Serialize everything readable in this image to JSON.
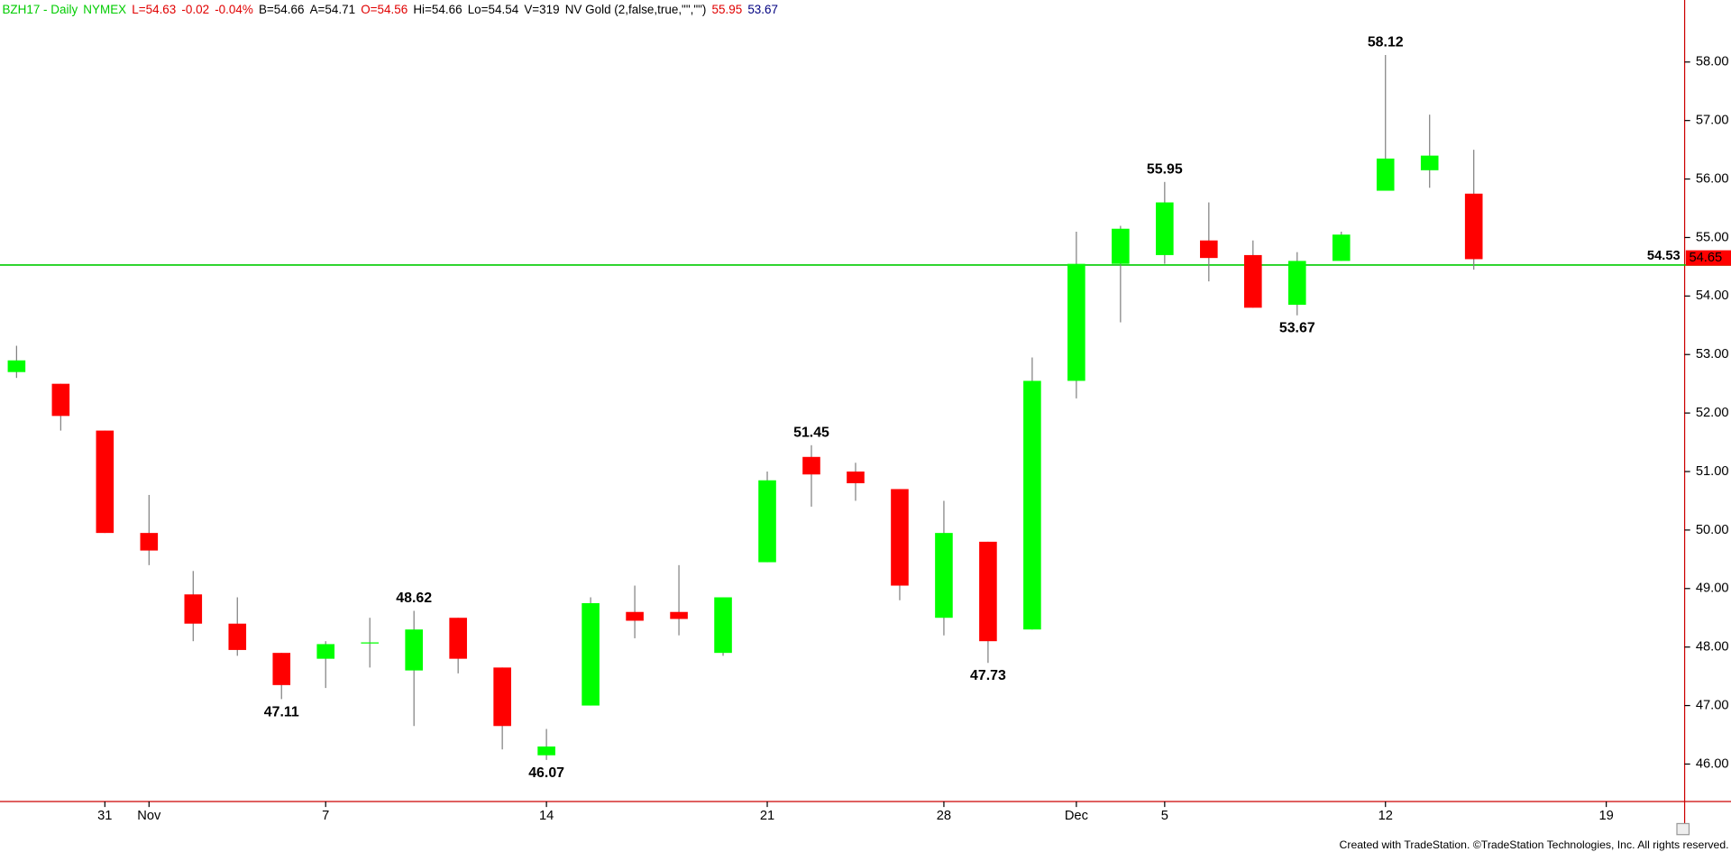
{
  "chart_data": {
    "type": "candlestick",
    "header": [
      {
        "text": "BZH17 - Daily",
        "color": "#00cc00"
      },
      {
        "text": "NYMEX",
        "color": "#00cc00"
      },
      {
        "text": "L=54.63",
        "color": "#e00000"
      },
      {
        "text": "-0.02",
        "color": "#e00000"
      },
      {
        "text": "-0.04%",
        "color": "#e00000"
      },
      {
        "text": "B=54.66",
        "color": "#000000"
      },
      {
        "text": "A=54.71",
        "color": "#000000"
      },
      {
        "text": "O=54.56",
        "color": "#e00000"
      },
      {
        "text": "Hi=54.66",
        "color": "#000000"
      },
      {
        "text": "Lo=54.54",
        "color": "#000000"
      },
      {
        "text": "V=319",
        "color": "#000000"
      },
      {
        "text": "NV Gold (2,false,true,\"\",\"\")",
        "color": "#000000"
      },
      {
        "text": "55.95",
        "color": "#e00000"
      },
      {
        "text": "53.67",
        "color": "#000080"
      }
    ],
    "footer": "Created with TradeStation. ©TradeStation Technologies, Inc. All rights reserved.",
    "categories": [
      null,
      null,
      "31",
      "Nov",
      null,
      null,
      null,
      "7",
      null,
      null,
      null,
      null,
      "14",
      null,
      null,
      null,
      null,
      "21",
      null,
      null,
      null,
      "28",
      null,
      null,
      "Dec",
      null,
      "5",
      null,
      null,
      null,
      null,
      "12",
      null,
      null,
      null,
      null,
      "19"
    ],
    "series": [
      {
        "up_color": "#00ff00",
        "down_color": "#ff0000",
        "open": [
          52.7,
          52.5,
          51.7,
          49.95,
          48.9,
          48.4,
          47.9,
          47.8,
          48.07,
          47.6,
          48.5,
          47.65,
          46.15,
          47.0,
          48.6,
          48.6,
          47.9,
          49.45,
          51.25,
          51.0,
          50.7,
          48.5,
          49.8,
          48.3,
          52.55,
          54.55,
          54.7,
          54.95,
          54.7,
          53.85,
          54.6,
          55.8,
          56.15,
          55.75,
          null,
          null,
          null
        ],
        "high": [
          53.15,
          52.5,
          51.7,
          50.6,
          49.3,
          48.85,
          47.9,
          48.1,
          48.5,
          48.62,
          48.5,
          47.65,
          46.6,
          48.85,
          49.05,
          49.4,
          48.85,
          51.0,
          51.45,
          51.15,
          50.7,
          50.5,
          49.8,
          52.95,
          55.1,
          55.2,
          55.95,
          55.6,
          54.95,
          54.75,
          55.1,
          58.12,
          57.1,
          56.5,
          null,
          null,
          null
        ],
        "low": [
          52.6,
          51.7,
          49.95,
          49.4,
          48.1,
          47.85,
          47.11,
          47.3,
          47.65,
          46.65,
          47.55,
          46.25,
          46.07,
          47.0,
          48.15,
          48.2,
          47.85,
          49.45,
          50.4,
          50.5,
          48.8,
          48.2,
          47.73,
          48.3,
          52.25,
          53.55,
          54.55,
          54.25,
          53.8,
          53.67,
          54.6,
          55.8,
          55.85,
          54.45,
          null,
          null,
          null
        ],
        "close": [
          52.9,
          51.95,
          49.95,
          49.65,
          48.4,
          47.95,
          47.35,
          48.05,
          48.07,
          48.3,
          47.8,
          46.65,
          46.3,
          48.75,
          48.45,
          48.48,
          48.85,
          50.85,
          50.95,
          50.8,
          49.05,
          49.95,
          48.1,
          52.55,
          54.55,
          55.15,
          55.6,
          54.65,
          53.8,
          54.6,
          55.05,
          56.35,
          56.4,
          54.63,
          null,
          null,
          null
        ]
      }
    ],
    "value_labels": {
      "high": [
        null,
        null,
        null,
        null,
        null,
        null,
        null,
        null,
        null,
        "48.62",
        null,
        null,
        null,
        null,
        null,
        null,
        null,
        null,
        "51.45",
        null,
        null,
        null,
        null,
        null,
        null,
        null,
        "55.95",
        null,
        null,
        null,
        null,
        "58.12",
        null,
        null,
        null,
        null,
        null
      ],
      "low": [
        null,
        null,
        null,
        null,
        null,
        null,
        "47.11",
        null,
        null,
        null,
        null,
        null,
        "46.07",
        null,
        null,
        null,
        null,
        null,
        null,
        null,
        null,
        null,
        "47.73",
        null,
        null,
        null,
        null,
        null,
        null,
        "53.67",
        null,
        null,
        null,
        null,
        null,
        null,
        null
      ]
    },
    "reference_line": {
      "value": 54.53,
      "label": "54.53",
      "color": "#00cc00"
    },
    "last_price": {
      "value": 54.65,
      "label": "54.65",
      "color": "#ff0000"
    },
    "ylim": [
      45.36,
      59.06
    ],
    "yticks": [
      {
        "value": 46,
        "label": "46.00"
      },
      {
        "value": 47,
        "label": "47.00"
      },
      {
        "value": 48,
        "label": "48.00"
      },
      {
        "value": 49,
        "label": "49.00"
      },
      {
        "value": 50,
        "label": "50.00"
      },
      {
        "value": 51,
        "label": "51.00"
      },
      {
        "value": 52,
        "label": "52.00"
      },
      {
        "value": 53,
        "label": "53.00"
      },
      {
        "value": 54,
        "label": "54.00"
      },
      {
        "value": 55,
        "label": "55.00"
      },
      {
        "value": 56,
        "label": "56.00"
      },
      {
        "value": 57,
        "label": "57.00"
      },
      {
        "value": 58,
        "label": "58.00"
      }
    ],
    "axis_color": "#cc0000"
  }
}
